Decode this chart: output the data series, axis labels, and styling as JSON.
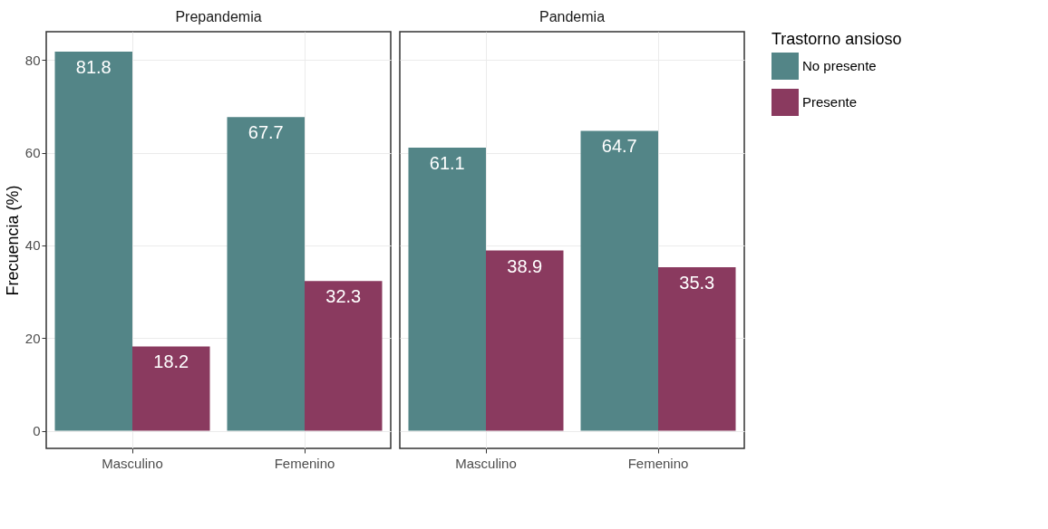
{
  "chart_data": [
    {
      "type": "bar",
      "title": "Prepandemia",
      "ylabel": "Frecuencia (%)",
      "categories": [
        "Masculino",
        "Femenino"
      ],
      "series": [
        {
          "color": "#538587",
          "values": [
            81.8,
            67.7
          ]
        },
        {
          "color": "#8a3a5f",
          "values": [
            18.2,
            32.3
          ]
        }
      ],
      "ylim": [
        -3.8,
        86.1
      ],
      "yticks": [
        0,
        20,
        40,
        60,
        80
      ],
      "grid": true,
      "data_labels": true,
      "legend": false
    },
    {
      "type": "bar",
      "title": "Pandemia",
      "legend_title": "Trastorno ansioso",
      "categories": [
        "Masculino",
        "Femenino"
      ],
      "series": [
        {
          "name": "No presente",
          "color": "#538587",
          "values": [
            61.1,
            64.7
          ]
        },
        {
          "name": "Presente",
          "color": "#8a3a5f",
          "values": [
            38.9,
            35.3
          ]
        }
      ],
      "ylim": [
        -3.8,
        86.1
      ],
      "yticks": [
        0,
        20,
        40,
        60,
        80
      ],
      "grid": true,
      "data_labels": true,
      "legend": "right",
      "tick_labels": "x"
    }
  ]
}
